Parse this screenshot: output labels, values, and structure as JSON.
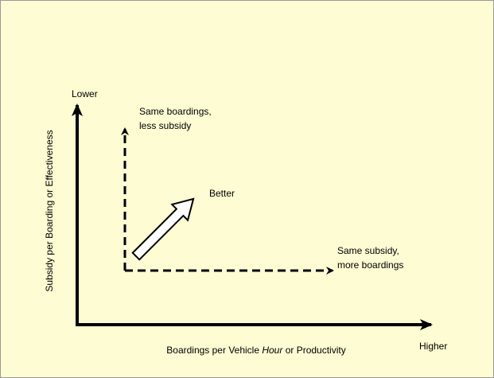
{
  "diagram": {
    "y_axis": {
      "end_label": "Lower",
      "title": "Subsidy per Boarding or  Effectiveness"
    },
    "x_axis": {
      "end_label": "Higher",
      "title_before": "Boardings per Vehicle ",
      "title_italic": "Hour",
      "title_after": " or Productivity"
    },
    "vertical_arrow": {
      "label_line1": "Same boardings,",
      "label_line2": "less subsidy"
    },
    "horizontal_arrow": {
      "label_line1": "Same subsidy,",
      "label_line2": "more boardings"
    },
    "diagonal_arrow": {
      "label": "Better"
    }
  }
}
